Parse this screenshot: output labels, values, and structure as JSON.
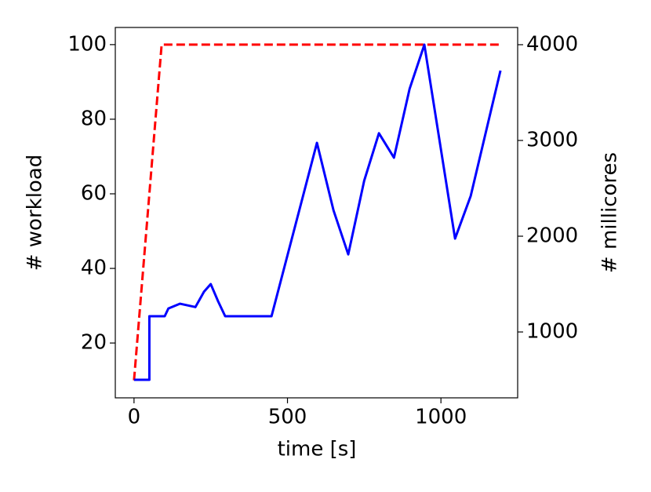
{
  "chart_data": {
    "type": "line",
    "xlabel": "time [s]",
    "ylabel": "# workload",
    "y2label": "# millicores",
    "xlim": [
      -61,
      1250
    ],
    "xticks": [
      0,
      500,
      1000
    ],
    "ylim": [
      5.3,
      104.6
    ],
    "yticks": [
      20,
      40,
      60,
      80,
      100
    ],
    "y2lim": [
      312,
      4180
    ],
    "y2ticks": [
      1000,
      2000,
      3000,
      4000
    ],
    "series": [
      {
        "name": "workload",
        "color": "#ff0000",
        "dashed": true,
        "x": [
          0,
          90,
          1200
        ],
        "values": [
          10,
          100,
          100
        ]
      },
      {
        "name": "millicores",
        "color": "#0000ff",
        "dashed": false,
        "axis": "y2",
        "x": [
          0,
          50,
          50,
          100,
          112,
          150,
          200,
          228,
          250,
          274,
          297,
          448,
          500,
          596,
          650,
          698,
          750,
          798,
          847,
          898,
          946,
          1046,
          1097,
          1194
        ],
        "values": [
          500,
          500,
          1164,
          1164,
          1245,
          1295,
          1260,
          1420,
          1500,
          1320,
          1164,
          1164,
          1800,
          2975,
          2270,
          1810,
          2580,
          3075,
          2820,
          3540,
          4000,
          1975,
          2420,
          3730
        ]
      }
    ]
  }
}
